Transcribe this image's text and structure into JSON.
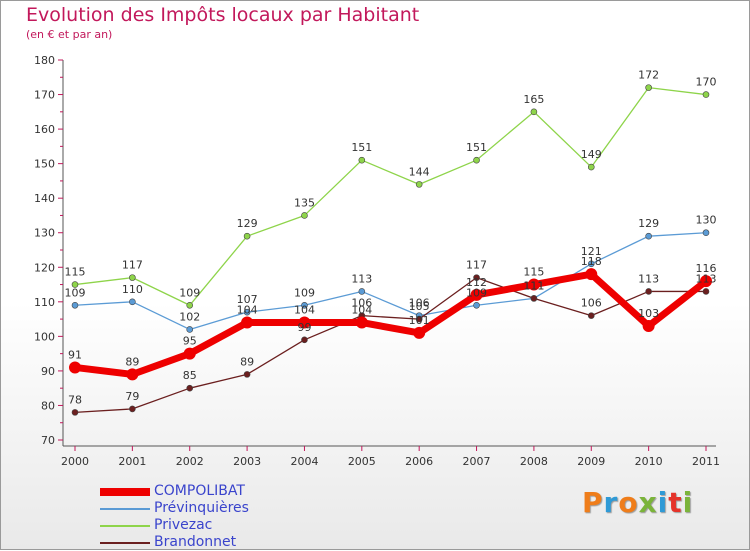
{
  "title": "Evolution des Impôts locaux par Habitant",
  "subtitle": "(en € et par an)",
  "logo": {
    "text": "Proxiti",
    "colors": [
      "#ef7d1a",
      "#2f9ad6",
      "#ef7d1a",
      "#7bb43a",
      "#2f9ad6",
      "#e5332a",
      "#7bb43a"
    ]
  },
  "chart_data": {
    "type": "line",
    "x": [
      "2000",
      "2001",
      "2002",
      "2003",
      "2004",
      "2005",
      "2006",
      "2007",
      "2008",
      "2009",
      "2010",
      "2011"
    ],
    "ylim": [
      70,
      180
    ],
    "yticks": [
      70,
      80,
      90,
      100,
      110,
      120,
      130,
      140,
      150,
      160,
      170,
      180
    ],
    "grid": false,
    "legend_position": "bottom-left",
    "series": [
      {
        "name": "COMPOLIBAT",
        "color": "#ee0000",
        "width": 7,
        "values": [
          91,
          89,
          95,
          104,
          104,
          104,
          101,
          112,
          115,
          118,
          103,
          116
        ],
        "labels": [
          "91",
          "89",
          "95",
          "104",
          "104",
          "104",
          "101",
          "112",
          "115",
          "118",
          "103",
          "116"
        ]
      },
      {
        "name": "Prévinquières",
        "color": "#5b9bd5",
        "width": 1.3,
        "values": [
          109,
          110,
          102,
          107,
          109,
          113,
          106,
          109,
          111,
          121,
          129,
          130
        ],
        "labels": [
          "109",
          "110",
          "102",
          "107",
          "109",
          "113",
          "106",
          "109",
          "111",
          "121",
          "129",
          "130"
        ]
      },
      {
        "name": "Privezac",
        "color": "#8ed44a",
        "width": 1.3,
        "values": [
          115,
          117,
          109,
          129,
          135,
          151,
          144,
          151,
          165,
          149,
          172,
          170
        ],
        "labels": [
          "115",
          "117",
          "109",
          "129",
          "135",
          "151",
          "144",
          "151",
          "165",
          "149",
          "172",
          "170"
        ]
      },
      {
        "name": "Brandonnet",
        "color": "#6b1f1f",
        "width": 1.3,
        "values": [
          78,
          79,
          85,
          89,
          99,
          106,
          105,
          117,
          111,
          106,
          113,
          113
        ],
        "labels": [
          "78",
          "79",
          "85",
          "89",
          "99",
          "106",
          "105",
          "117",
          "111",
          "106",
          "113",
          "113"
        ]
      }
    ]
  }
}
